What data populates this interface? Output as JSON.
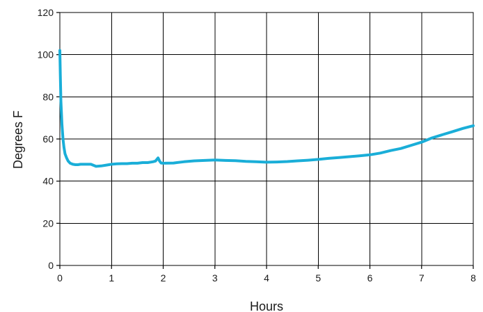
{
  "chart_data": {
    "type": "line",
    "title": "",
    "xlabel": "Hours",
    "ylabel": "Degrees F",
    "xlim": [
      0,
      8
    ],
    "ylim": [
      0,
      120
    ],
    "xticks": [
      0,
      1,
      2,
      3,
      4,
      5,
      6,
      7,
      8
    ],
    "yticks": [
      0,
      20,
      40,
      60,
      80,
      100,
      120
    ],
    "grid": true,
    "legend": "none",
    "line_color": "#1aaed8",
    "series": [
      {
        "x": [
          0,
          0.01,
          0.02,
          0.04,
          0.06,
          0.08,
          0.1,
          0.13,
          0.16,
          0.2,
          0.25,
          0.3,
          0.35,
          0.4,
          0.5,
          0.6,
          0.7,
          0.8,
          0.9,
          1.0,
          1.1,
          1.2,
          1.3,
          1.4,
          1.5,
          1.6,
          1.7,
          1.8,
          1.85,
          1.9,
          1.93,
          1.96,
          2.0,
          2.2,
          2.4,
          2.6,
          2.8,
          3.0,
          3.2,
          3.4,
          3.6,
          3.8,
          4.0,
          4.2,
          4.4,
          4.6,
          4.8,
          5.0,
          5.2,
          5.4,
          5.6,
          5.8,
          6.0,
          6.2,
          6.4,
          6.6,
          6.8,
          7.0,
          7.2,
          7.4,
          7.6,
          7.8,
          8.0
        ],
        "y": [
          102,
          90,
          78,
          67,
          60,
          56,
          53,
          51,
          49.5,
          48.5,
          48,
          47.8,
          47.8,
          48,
          48,
          48,
          47,
          47.2,
          47.6,
          48,
          48.2,
          48.3,
          48.3,
          48.5,
          48.5,
          48.8,
          48.8,
          49.2,
          49.5,
          51,
          49.5,
          48.6,
          48.5,
          48.6,
          49.2,
          49.6,
          49.8,
          50,
          49.8,
          49.7,
          49.4,
          49.2,
          49,
          49.1,
          49.3,
          49.6,
          49.9,
          50.3,
          50.8,
          51.2,
          51.6,
          52,
          52.5,
          53.3,
          54.5,
          55.5,
          57,
          58.5,
          60.5,
          62,
          63.5,
          65,
          66.3
        ]
      }
    ]
  }
}
